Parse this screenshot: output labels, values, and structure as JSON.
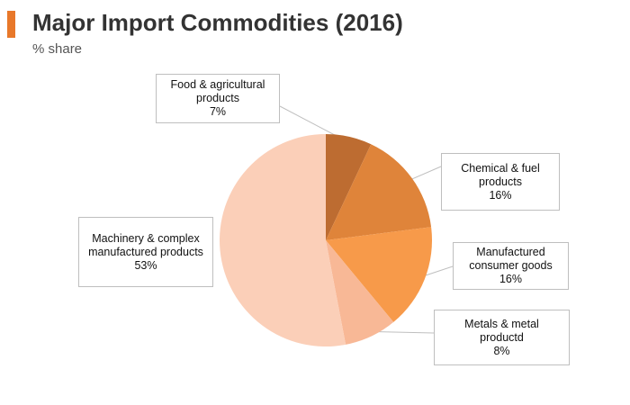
{
  "header": {
    "title": "Major Import Commodities (2016)",
    "subtitle": "% share",
    "accent_color": "#e8782a"
  },
  "chart_data": {
    "type": "pie",
    "title": "Major Import Commodities (2016)",
    "subtitle": "% share",
    "unit": "%",
    "slices": [
      {
        "label_lines": [
          "Food & agricultural",
          "products"
        ],
        "value": 7,
        "value_label": "7%",
        "color": "#bd6c31"
      },
      {
        "label_lines": [
          "Chemical & fuel",
          "products"
        ],
        "value": 16,
        "value_label": "16%",
        "color": "#df843a"
      },
      {
        "label_lines": [
          "Manufactured",
          "consumer goods"
        ],
        "value": 16,
        "value_label": "16%",
        "color": "#f79a4a"
      },
      {
        "label_lines": [
          "Metals & metal",
          "productd"
        ],
        "value": 8,
        "value_label": "8%",
        "color": "#f8b896"
      },
      {
        "label_lines": [
          "Machinery & complex",
          "manufactured products"
        ],
        "value": 53,
        "value_label": "53%",
        "color": "#fbcfb8"
      }
    ]
  }
}
